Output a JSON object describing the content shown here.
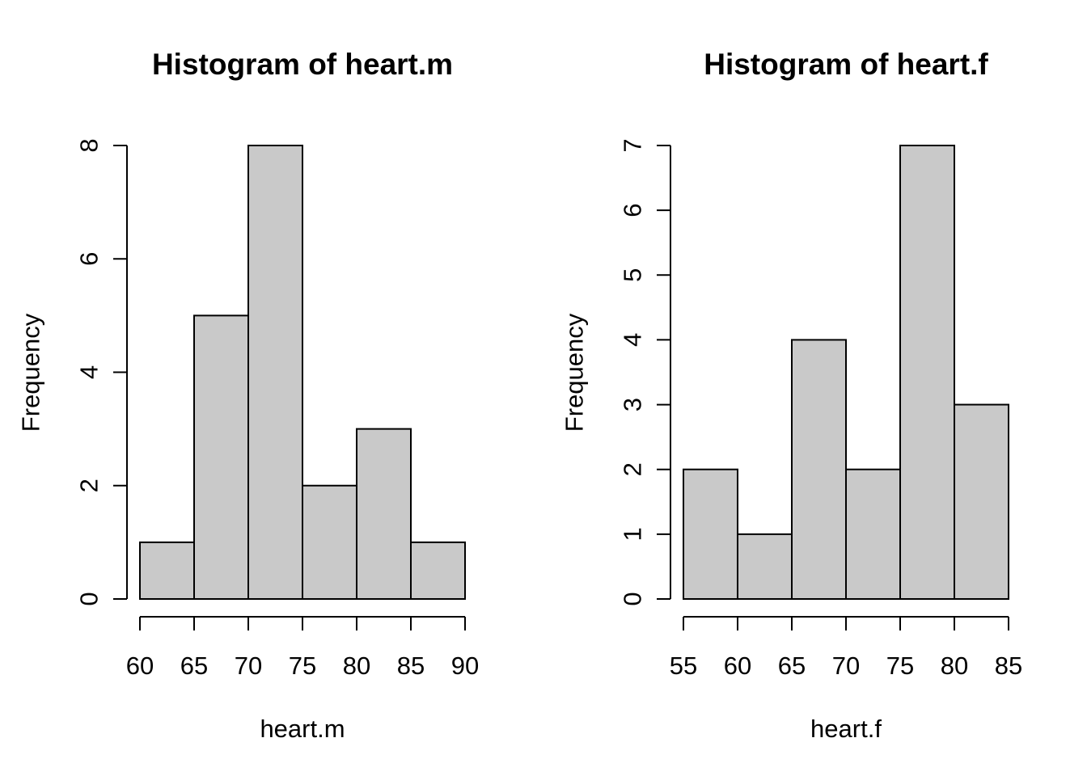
{
  "chart_data": [
    {
      "type": "bar",
      "title": "Histogram of heart.m",
      "xlabel": "heart.m",
      "ylabel": "Frequency",
      "bins": [
        [
          60,
          65
        ],
        [
          65,
          70
        ],
        [
          70,
          75
        ],
        [
          75,
          80
        ],
        [
          80,
          85
        ],
        [
          85,
          90
        ]
      ],
      "values": [
        1,
        5,
        8,
        2,
        3,
        1
      ],
      "xticks": [
        60,
        65,
        70,
        75,
        80,
        85,
        90
      ],
      "yticks": [
        0,
        2,
        4,
        6,
        8
      ],
      "xlim": [
        60,
        90
      ],
      "ylim": [
        0,
        8
      ],
      "bar_color": "#c9c9c9",
      "grid": false
    },
    {
      "type": "bar",
      "title": "Histogram of heart.f",
      "xlabel": "heart.f",
      "ylabel": "Frequency",
      "bins": [
        [
          55,
          60
        ],
        [
          60,
          65
        ],
        [
          65,
          70
        ],
        [
          70,
          75
        ],
        [
          75,
          80
        ],
        [
          80,
          85
        ]
      ],
      "values": [
        2,
        1,
        4,
        2,
        7,
        3
      ],
      "xticks": [
        55,
        60,
        65,
        70,
        75,
        80,
        85
      ],
      "yticks": [
        0,
        1,
        2,
        3,
        4,
        5,
        6,
        7
      ],
      "xlim": [
        55,
        85
      ],
      "ylim": [
        0,
        7
      ],
      "bar_color": "#c9c9c9",
      "grid": false
    }
  ]
}
